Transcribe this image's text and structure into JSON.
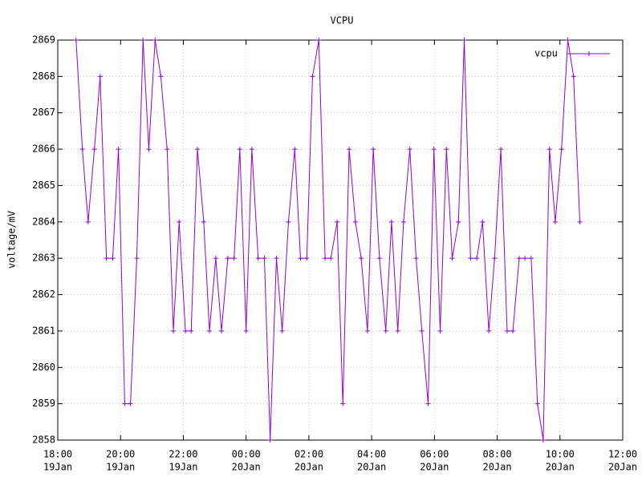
{
  "chart_data": {
    "type": "line",
    "title": "VCPU",
    "y_label": "voltage/mV",
    "x": [
      "19Jan 18:35",
      "19Jan 18:47",
      "19Jan 18:58",
      "19Jan 19:10",
      "19Jan 19:21",
      "19Jan 19:33",
      "19Jan 19:45",
      "19Jan 19:56",
      "19Jan 20:08",
      "19Jan 20:19",
      "19Jan 20:31",
      "19Jan 20:43",
      "19Jan 20:54",
      "19Jan 21:06",
      "19Jan 21:17",
      "19Jan 21:29",
      "19Jan 21:41",
      "19Jan 21:52",
      "19Jan 22:04",
      "19Jan 22:15",
      "19Jan 22:27",
      "19Jan 22:39",
      "19Jan 22:50",
      "19Jan 23:02",
      "19Jan 23:13",
      "19Jan 23:25",
      "19Jan 23:37",
      "19Jan 23:48",
      "20Jan 00:00",
      "20Jan 00:11",
      "20Jan 00:23",
      "20Jan 00:35",
      "20Jan 00:46",
      "20Jan 00:58",
      "20Jan 01:09",
      "20Jan 01:21",
      "20Jan 01:33",
      "20Jan 01:44",
      "20Jan 01:56",
      "20Jan 02:07",
      "20Jan 02:19",
      "20Jan 02:31",
      "20Jan 02:42",
      "20Jan 02:54",
      "20Jan 03:05",
      "20Jan 03:17",
      "20Jan 03:29",
      "20Jan 03:40",
      "20Jan 03:52",
      "20Jan 04:03",
      "20Jan 04:15",
      "20Jan 04:27",
      "20Jan 04:38",
      "20Jan 04:50",
      "20Jan 05:01",
      "20Jan 05:13",
      "20Jan 05:25",
      "20Jan 05:36",
      "20Jan 05:48",
      "20Jan 05:59",
      "20Jan 06:11",
      "20Jan 06:23",
      "20Jan 06:34",
      "20Jan 06:46",
      "20Jan 06:57",
      "20Jan 07:09",
      "20Jan 07:21",
      "20Jan 07:32",
      "20Jan 07:44",
      "20Jan 07:55",
      "20Jan 08:07",
      "20Jan 08:19",
      "20Jan 08:30",
      "20Jan 08:42",
      "20Jan 08:53",
      "20Jan 09:05",
      "20Jan 09:17",
      "20Jan 09:28",
      "20Jan 09:40",
      "20Jan 09:51",
      "20Jan 10:03",
      "20Jan 10:15",
      "20Jan 10:26",
      "20Jan 10:38"
    ],
    "series": [
      {
        "name": "vcpu",
        "color": "#9400d3",
        "values": [
          2869,
          2866,
          2864,
          2866,
          2868,
          2863,
          2863,
          2866,
          2859,
          2859,
          2863,
          2869,
          2866,
          2869,
          2868,
          2866,
          2861,
          2864,
          2861,
          2861,
          2866,
          2864,
          2861,
          2863,
          2861,
          2863,
          2863,
          2866,
          2861,
          2866,
          2863,
          2863,
          2858,
          2863,
          2861,
          2864,
          2866,
          2863,
          2863,
          2868,
          2869,
          2863,
          2863,
          2864,
          2859,
          2866,
          2864,
          2863,
          2861,
          2866,
          2863,
          2861,
          2864,
          2861,
          2864,
          2866,
          2863,
          2861,
          2859,
          2866,
          2861,
          2866,
          2863,
          2864,
          2869,
          2863,
          2863,
          2864,
          2861,
          2863,
          2866,
          2861,
          2861,
          2863,
          2863,
          2863,
          2859,
          2858,
          2866,
          2864,
          2866,
          2869,
          2868,
          2864
        ]
      }
    ],
    "xlim": [
      "19Jan 18:00",
      "20Jan 12:00"
    ],
    "xticks": [
      {
        "value": "19Jan 18:00",
        "label": [
          "18:00",
          "19Jan"
        ]
      },
      {
        "value": "19Jan 20:00",
        "label": [
          "20:00",
          "19Jan"
        ]
      },
      {
        "value": "19Jan 22:00",
        "label": [
          "22:00",
          "19Jan"
        ]
      },
      {
        "value": "20Jan 00:00",
        "label": [
          "00:00",
          "20Jan"
        ]
      },
      {
        "value": "20Jan 02:00",
        "label": [
          "02:00",
          "20Jan"
        ]
      },
      {
        "value": "20Jan 04:00",
        "label": [
          "04:00",
          "20Jan"
        ]
      },
      {
        "value": "20Jan 06:00",
        "label": [
          "06:00",
          "20Jan"
        ]
      },
      {
        "value": "20Jan 08:00",
        "label": [
          "08:00",
          "20Jan"
        ]
      },
      {
        "value": "20Jan 10:00",
        "label": [
          "10:00",
          "20Jan"
        ]
      },
      {
        "value": "20Jan 12:00",
        "label": [
          "12:00",
          "20Jan"
        ]
      }
    ],
    "ylim": [
      2858,
      2869
    ],
    "yticks": [
      2858,
      2859,
      2860,
      2861,
      2862,
      2863,
      2864,
      2865,
      2866,
      2867,
      2868,
      2869
    ],
    "grid": true,
    "legend": "top-right"
  }
}
